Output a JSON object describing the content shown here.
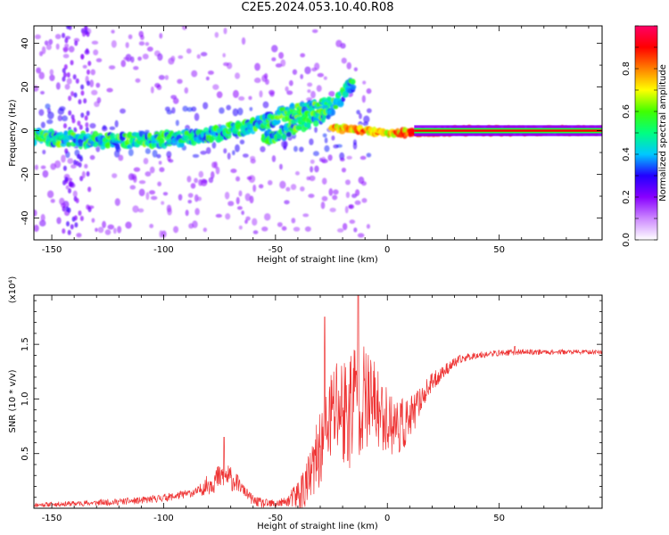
{
  "title": "C2E5.2024.053.10.40.R08",
  "chart_data": [
    {
      "type": "heatmap",
      "xlabel": "Height of straight line (km)",
      "ylabel": "Frequency (Hz)",
      "xlim": [
        -158,
        96
      ],
      "ylim": [
        -50,
        48
      ],
      "x_ticks": [
        -150,
        -100,
        -50,
        0,
        50
      ],
      "y_ticks": [
        -40,
        -20,
        0,
        20,
        40
      ],
      "colorbar": {
        "label": "Normalized spectral amplitude",
        "range": [
          0,
          1
        ],
        "ticks": [
          0.0,
          0.2,
          0.4,
          0.6,
          0.8
        ],
        "tick_labels": [
          "0.0",
          "0.2",
          "0.4",
          "0.6",
          "0.8"
        ],
        "colors": [
          "#ffffff",
          "#cc88ff",
          "#8800ff",
          "#2200ff",
          "#00c8ff",
          "#00ff80",
          "#40ff00",
          "#ffff00",
          "#ff8000",
          "#ff0000",
          "#ff0066"
        ]
      },
      "ridges": [
        {
          "x": [
            -158,
            -140,
            -120,
            -100,
            -85,
            -70,
            -55,
            -45,
            -35,
            -25
          ],
          "y": [
            -3,
            -4,
            -5,
            -4,
            -3,
            0,
            4,
            8,
            10,
            12
          ]
        },
        {
          "x": [
            -55,
            -45,
            -35,
            -25,
            -15
          ],
          "y": [
            -4,
            0,
            4,
            10,
            22
          ]
        },
        {
          "x": [
            -25,
            -10,
            0,
            10,
            30,
            60,
            96
          ],
          "y": [
            1,
            0,
            -1,
            -1,
            0,
            0,
            0
          ]
        }
      ]
    },
    {
      "type": "line",
      "xlabel": "Height of straight line (km)",
      "ylabel": "SNR (10 * v/v)",
      "y_multiplier": "(x10⁴)",
      "xlim": [
        -158,
        96
      ],
      "ylim": [
        0,
        1.95
      ],
      "x_ticks": [
        -150,
        -100,
        -50,
        0,
        50
      ],
      "y_ticks": [
        0.5,
        1.0,
        1.5
      ],
      "y_tick_labels": [
        "0.5",
        "1.0",
        "1.5"
      ],
      "color": "#ee3333",
      "envelope": {
        "x": [
          -158,
          -130,
          -110,
          -95,
          -85,
          -78,
          -73,
          -68,
          -64,
          -60,
          -55,
          -50,
          -45,
          -40,
          -35,
          -30,
          -26,
          -22,
          -18,
          -14,
          -10,
          -6,
          -2,
          2,
          6,
          10,
          15,
          20,
          25,
          30,
          35,
          40,
          50,
          60,
          70,
          80,
          90,
          96
        ],
        "y": [
          0.03,
          0.05,
          0.07,
          0.11,
          0.15,
          0.25,
          0.3,
          0.25,
          0.16,
          0.07,
          0.04,
          0.04,
          0.06,
          0.12,
          0.25,
          0.55,
          0.8,
          0.95,
          0.85,
          1.05,
          1.0,
          0.95,
          0.85,
          0.78,
          0.75,
          0.8,
          1.0,
          1.15,
          1.25,
          1.33,
          1.38,
          1.4,
          1.42,
          1.43,
          1.43,
          1.43,
          1.43,
          1.43
        ]
      },
      "spread": {
        "x": [
          -158,
          -85,
          -78,
          -70,
          -65,
          -45,
          -38,
          -30,
          -22,
          -15,
          -8,
          0,
          8,
          15,
          25,
          40,
          96
        ],
        "y": [
          0.02,
          0.04,
          0.12,
          0.12,
          0.05,
          0.04,
          0.2,
          0.35,
          0.55,
          0.6,
          0.45,
          0.3,
          0.25,
          0.12,
          0.06,
          0.03,
          0.02
        ]
      },
      "peaks": [
        {
          "x": -73,
          "y": 0.65
        },
        {
          "x": -28,
          "y": 1.75
        },
        {
          "x": -13,
          "y": 1.95
        },
        {
          "x": 57,
          "y": 1.48
        }
      ]
    }
  ]
}
